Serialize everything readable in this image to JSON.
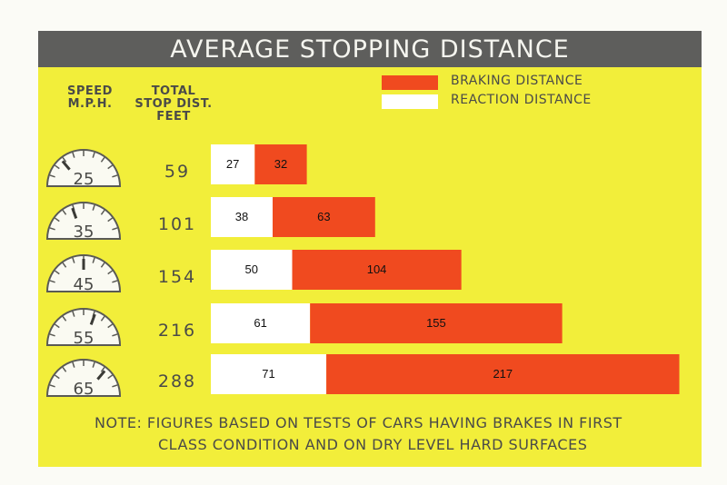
{
  "title": "AVERAGE STOPPING DISTANCE",
  "headers": {
    "speed_line1": "SPEED",
    "speed_line2": "M.P.H.",
    "total_line1": "TOTAL",
    "total_line2": "STOP DIST.",
    "total_line3": "FEET"
  },
  "legend": [
    {
      "label": "BRAKING DISTANCE",
      "color": "#f04a1f"
    },
    {
      "label": "REACTION DISTANCE",
      "color": "#ffffff"
    }
  ],
  "colors": {
    "background": "#f2ee3a",
    "title_bar": "#5e5e5c",
    "braking": "#f04a1f",
    "reaction": "#ffffff",
    "text": "#4b4b48"
  },
  "chart_data": {
    "type": "bar",
    "orientation": "horizontal",
    "stacked": true,
    "title": "AVERAGE STOPPING DISTANCE",
    "categories": [
      "25",
      "35",
      "45",
      "55",
      "65"
    ],
    "total_stop_distance": [
      "59",
      "101",
      "154",
      "216",
      "288"
    ],
    "series": [
      {
        "name": "REACTION DISTANCE",
        "values": [
          27,
          38,
          50,
          61,
          71
        ]
      },
      {
        "name": "BRAKING DISTANCE",
        "values": [
          32,
          63,
          104,
          155,
          217
        ]
      }
    ],
    "legend_position": "top-right",
    "grid": false
  },
  "note": {
    "line1": "NOTE: FIGURES BASED ON TESTS OF CARS HAVING BRAKES IN FIRST",
    "line2": "CLASS CONDITION AND ON DRY LEVEL HARD SURFACES"
  }
}
